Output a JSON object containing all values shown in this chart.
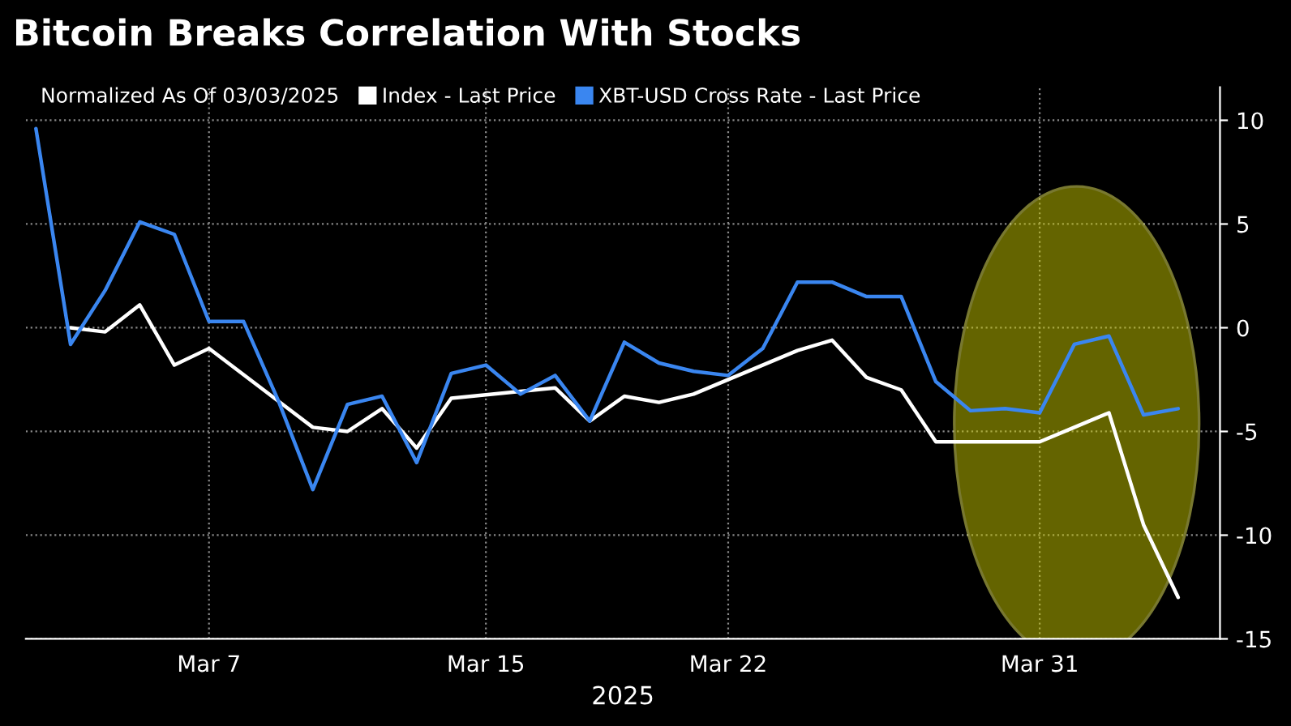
{
  "chart_data": {
    "type": "line",
    "title": "Bitcoin Breaks Correlation With Stocks",
    "legend_title": "Normalized As Of 03/03/2025",
    "xlabel": "2025",
    "xlim": [
      "2025-03-01T17:00",
      "2025-04-05T05:00"
    ],
    "ylim": [
      -15,
      11.6
    ],
    "xticks": [
      {
        "value": "2025-03-07",
        "label": "Mar 7"
      },
      {
        "value": "2025-03-15",
        "label": "Mar 15"
      },
      {
        "value": "2025-03-22",
        "label": "Mar 22"
      },
      {
        "value": "2025-03-31",
        "label": "Mar 31"
      }
    ],
    "yticks": [
      10,
      5,
      0,
      -5,
      -10,
      -15
    ],
    "grid": true,
    "legend": "top",
    "series": [
      {
        "name": "Index - Last Price",
        "color": "#ffffff",
        "x": [
          "2025-03-03",
          "2025-03-04",
          "2025-03-05",
          "2025-03-06",
          "2025-03-07",
          "2025-03-10",
          "2025-03-11",
          "2025-03-12",
          "2025-03-13",
          "2025-03-14",
          "2025-03-17",
          "2025-03-18",
          "2025-03-19",
          "2025-03-20",
          "2025-03-21",
          "2025-03-24",
          "2025-03-25",
          "2025-03-26",
          "2025-03-27",
          "2025-03-28",
          "2025-03-31",
          "2025-04-01",
          "2025-04-02",
          "2025-04-03",
          "2025-04-04"
        ],
        "values": [
          0,
          -0.2,
          1.1,
          -1.8,
          -1.0,
          -4.8,
          -5.0,
          -3.9,
          -5.8,
          -3.4,
          -2.9,
          -4.5,
          -3.3,
          -3.6,
          -3.2,
          -1.1,
          -0.6,
          -2.4,
          -3.0,
          -5.5,
          -5.5,
          -4.8,
          -4.1,
          -9.5,
          -13.0
        ]
      },
      {
        "name": "XBT-USD Cross Rate - Last Price",
        "color": "#3a86f0",
        "x": [
          "2025-03-02",
          "2025-03-03",
          "2025-03-04",
          "2025-03-05",
          "2025-03-06",
          "2025-03-07",
          "2025-03-08",
          "2025-03-09",
          "2025-03-10",
          "2025-03-11",
          "2025-03-12",
          "2025-03-13",
          "2025-03-14",
          "2025-03-15",
          "2025-03-16",
          "2025-03-17",
          "2025-03-18",
          "2025-03-19",
          "2025-03-20",
          "2025-03-21",
          "2025-03-22",
          "2025-03-23",
          "2025-03-24",
          "2025-03-25",
          "2025-03-26",
          "2025-03-27",
          "2025-03-28",
          "2025-03-29",
          "2025-03-30",
          "2025-03-31",
          "2025-04-01",
          "2025-04-02",
          "2025-04-03",
          "2025-04-04"
        ],
        "values": [
          9.6,
          -0.8,
          1.8,
          5.1,
          4.5,
          0.3,
          0.3,
          -3.5,
          -7.8,
          -3.7,
          -3.3,
          -6.5,
          -2.2,
          -1.8,
          -3.2,
          -2.3,
          -4.5,
          -0.7,
          -1.7,
          -2.1,
          -2.3,
          -1.0,
          2.2,
          2.2,
          1.5,
          1.5,
          -2.6,
          -4.0,
          -3.9,
          -4.1,
          -0.8,
          -0.4,
          -4.2,
          -3.9
        ]
      }
    ]
  }
}
